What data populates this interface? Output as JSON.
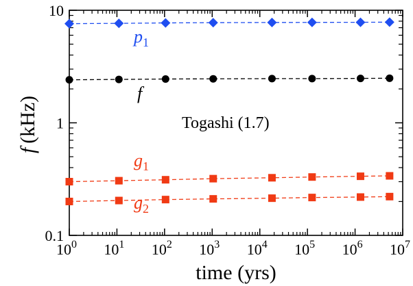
{
  "chart_data": {
    "type": "scatter",
    "xscale": "log",
    "yscale": "log",
    "xlim": [
      1,
      10000000
    ],
    "ylim": [
      0.1,
      10
    ],
    "xlabel": "time (yrs)",
    "ylabel": {
      "symbol": "f",
      "unit": "(kHz)"
    },
    "x_ticks": [
      {
        "value": 1,
        "base": "10",
        "exp": "0"
      },
      {
        "value": 10,
        "base": "10",
        "exp": "1"
      },
      {
        "value": 100,
        "base": "10",
        "exp": "2"
      },
      {
        "value": 1000,
        "base": "10",
        "exp": "3"
      },
      {
        "value": 10000,
        "base": "10",
        "exp": "4"
      },
      {
        "value": 100000,
        "base": "10",
        "exp": "5"
      },
      {
        "value": 1000000,
        "base": "10",
        "exp": "6"
      },
      {
        "value": 10000000,
        "base": "10",
        "exp": "7"
      }
    ],
    "y_ticks": [
      {
        "value": 0.1,
        "label": "0.1"
      },
      {
        "value": 1,
        "label": "1"
      },
      {
        "value": 10,
        "label": "10"
      }
    ],
    "annotation": "Togashi (1.7)",
    "x": [
      1,
      11,
      105,
      1050,
      18000,
      125000,
      1300000,
      5300000
    ],
    "series": [
      {
        "name": "p1",
        "label": {
          "symbol": "p",
          "sub": "1"
        },
        "color": "#1f4ef0",
        "marker": "diamond",
        "values": [
          7.6,
          7.65,
          7.72,
          7.76,
          7.79,
          7.8,
          7.82,
          7.84
        ]
      },
      {
        "name": "f",
        "label": {
          "symbol": "f",
          "sub": ""
        },
        "color": "#000000",
        "marker": "circle",
        "values": [
          2.41,
          2.43,
          2.45,
          2.46,
          2.47,
          2.47,
          2.48,
          2.49
        ]
      },
      {
        "name": "g1",
        "label": {
          "symbol": "g",
          "sub": "1"
        },
        "color": "#f03a14",
        "marker": "square",
        "values": [
          0.3,
          0.306,
          0.312,
          0.319,
          0.325,
          0.33,
          0.335,
          0.338
        ]
      },
      {
        "name": "g2",
        "label": {
          "symbol": "g",
          "sub": "2"
        },
        "color": "#f03a14",
        "marker": "square",
        "values": [
          0.2,
          0.204,
          0.208,
          0.211,
          0.214,
          0.217,
          0.219,
          0.221
        ]
      }
    ]
  }
}
